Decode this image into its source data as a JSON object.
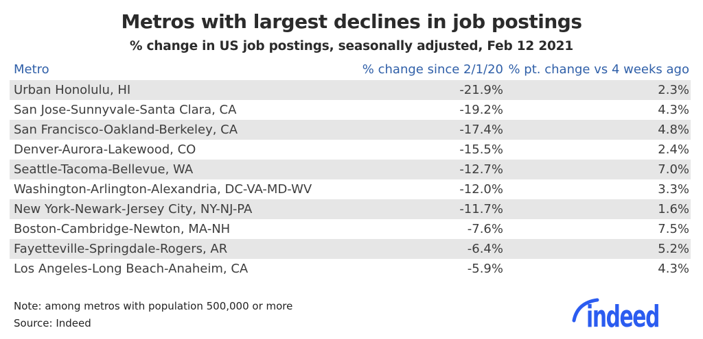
{
  "header": {
    "title": "Metros with largest declines in job postings",
    "subtitle": "% change in US job postings, seasonally adjusted, Feb 12 2021"
  },
  "table": {
    "columns": {
      "metro": "Metro",
      "change_since": "% change since 2/1/20",
      "pt_change": "% pt. change vs 4 weeks ago"
    },
    "rows": [
      {
        "metro": "Urban Honolulu, HI",
        "change_since": "-21.9%",
        "pt_change": "2.3%"
      },
      {
        "metro": "San Jose-Sunnyvale-Santa Clara, CA",
        "change_since": "-19.2%",
        "pt_change": "4.3%"
      },
      {
        "metro": "San Francisco-Oakland-Berkeley, CA",
        "change_since": "-17.4%",
        "pt_change": "4.8%"
      },
      {
        "metro": "Denver-Aurora-Lakewood, CO",
        "change_since": "-15.5%",
        "pt_change": "2.4%"
      },
      {
        "metro": "Seattle-Tacoma-Bellevue, WA",
        "change_since": "-12.7%",
        "pt_change": "7.0%"
      },
      {
        "metro": "Washington-Arlington-Alexandria, DC-VA-MD-WV",
        "change_since": "-12.0%",
        "pt_change": "3.3%"
      },
      {
        "metro": "New York-Newark-Jersey City, NY-NJ-PA",
        "change_since": "-11.7%",
        "pt_change": "1.6%"
      },
      {
        "metro": "Boston-Cambridge-Newton, MA-NH",
        "change_since": "-7.6%",
        "pt_change": "7.5%"
      },
      {
        "metro": "Fayetteville-Springdale-Rogers, AR",
        "change_since": "-6.4%",
        "pt_change": "5.2%"
      },
      {
        "metro": "Los Angeles-Long Beach-Anaheim, CA",
        "change_since": "-5.9%",
        "pt_change": "4.3%"
      }
    ]
  },
  "footer": {
    "note": "Note: among metros with population 500,000 or more",
    "source": "Source: Indeed",
    "logo_text": "indeed"
  },
  "colors": {
    "header_blue": "#2f5fa8",
    "logo_blue": "#2b5cf0",
    "row_stripe": "#e6e6e6",
    "row_text": "#3d3d3d",
    "title_text": "#2b2b2b"
  },
  "chart_data": {
    "type": "table",
    "title": "Metros with largest declines in job postings",
    "subtitle": "% change in US job postings, seasonally adjusted, Feb 12 2021",
    "columns": [
      "Metro",
      "% change since 2/1/20",
      "% pt. change vs 4 weeks ago"
    ],
    "rows": [
      [
        "Urban Honolulu, HI",
        -21.9,
        2.3
      ],
      [
        "San Jose-Sunnyvale-Santa Clara, CA",
        -19.2,
        4.3
      ],
      [
        "San Francisco-Oakland-Berkeley, CA",
        -17.4,
        4.8
      ],
      [
        "Denver-Aurora-Lakewood, CO",
        -15.5,
        2.4
      ],
      [
        "Seattle-Tacoma-Bellevue, WA",
        -12.7,
        7.0
      ],
      [
        "Washington-Arlington-Alexandria, DC-VA-MD-WV",
        -12.0,
        3.3
      ],
      [
        "New York-Newark-Jersey City, NY-NJ-PA",
        -11.7,
        1.6
      ],
      [
        "Boston-Cambridge-Newton, MA-NH",
        -7.6,
        7.5
      ],
      [
        "Fayetteville-Springdale-Rogers, AR",
        -6.4,
        5.2
      ],
      [
        "Los Angeles-Long Beach-Anaheim, CA",
        -5.9,
        4.3
      ]
    ],
    "units": "percent",
    "grid": false,
    "legend_position": "none",
    "note": "Note: among metros with population 500,000 or more",
    "source": "Source: Indeed"
  }
}
